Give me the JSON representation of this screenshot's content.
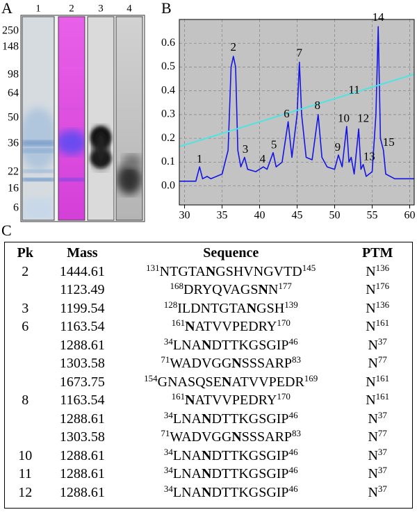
{
  "panel_labels": [
    "A",
    "B",
    "C"
  ],
  "gel": {
    "lanes": [
      "1",
      "2",
      "3",
      "4"
    ],
    "markers": [
      250,
      148,
      98,
      64,
      50,
      36,
      22,
      16,
      6
    ]
  },
  "chart_data": {
    "type": "line",
    "xlim": [
      29.3,
      60.6
    ],
    "ylim": [
      -0.08,
      0.7
    ],
    "xticks": [
      30,
      35,
      40,
      45,
      50,
      55,
      60
    ],
    "yticks": [
      {
        "value": 0,
        "label": "0.0"
      },
      0.1,
      0.2,
      0.3,
      0.4,
      0.5,
      0.6
    ],
    "grid": true,
    "series": [
      {
        "color": "#1414e6",
        "x": [
          29.3,
          31.5,
          32,
          32.4,
          33,
          33.5,
          35,
          35.8,
          36.2,
          36.5,
          36.8,
          37.1,
          37.5,
          38,
          38.4,
          39.5,
          40.5,
          41,
          41.8,
          42.2,
          43,
          43.8,
          44.3,
          45,
          45.3,
          45.6,
          46.2,
          47,
          47.8,
          48.3,
          49,
          50,
          50.5,
          51,
          51.6,
          51.9,
          52.2,
          52.6,
          53.2,
          53.5,
          53.8,
          54.2,
          55,
          55.5,
          55.8,
          56.1,
          56.5,
          56.8,
          58,
          60.6
        ],
        "values": [
          0.02,
          0.02,
          0.08,
          0.03,
          0.04,
          0.03,
          0.05,
          0.15,
          0.5,
          0.545,
          0.5,
          0.15,
          0.08,
          0.12,
          0.07,
          0.06,
          0.08,
          0.07,
          0.14,
          0.08,
          0.1,
          0.27,
          0.12,
          0.3,
          0.52,
          0.3,
          0.12,
          0.11,
          0.3,
          0.12,
          0.08,
          0.07,
          0.13,
          0.08,
          0.25,
          0.1,
          0.12,
          0.05,
          0.24,
          0.07,
          0.09,
          0.04,
          0.06,
          0.3,
          0.67,
          0.2,
          0.15,
          0.05,
          0.03,
          0.03
        ]
      },
      {
        "color": "#4fe3e3",
        "x": [
          29.3,
          60.6
        ],
        "values": [
          0.165,
          0.47
        ]
      }
    ],
    "annotations": [
      {
        "text": "1",
        "x": 32,
        "y": 0.11
      },
      {
        "text": "2",
        "x": 36.5,
        "y": 0.58
      },
      {
        "text": "3",
        "x": 38.1,
        "y": 0.15
      },
      {
        "text": "4",
        "x": 40.4,
        "y": 0.11
      },
      {
        "text": "5",
        "x": 41.9,
        "y": 0.17
      },
      {
        "text": "6",
        "x": 43.6,
        "y": 0.3
      },
      {
        "text": "7",
        "x": 45.3,
        "y": 0.555
      },
      {
        "text": "8",
        "x": 47.7,
        "y": 0.335
      },
      {
        "text": "9",
        "x": 50.4,
        "y": 0.16
      },
      {
        "text": "10",
        "x": 51.2,
        "y": 0.28
      },
      {
        "text": "11",
        "x": 52.6,
        "y": 0.4
      },
      {
        "text": "12",
        "x": 53.8,
        "y": 0.28
      },
      {
        "text": "13",
        "x": 54.6,
        "y": 0.12
      },
      {
        "text": "14",
        "x": 55.8,
        "y": 0.705
      },
      {
        "text": "15",
        "x": 57.2,
        "y": 0.18
      }
    ]
  },
  "table": {
    "columns": [
      "Pk",
      "Mass",
      "Sequence",
      "PTM"
    ],
    "rows": [
      {
        "pk": 2,
        "mass": 1444.61,
        "start": 131,
        "sequence": [
          {
            "text": "NTGTA"
          },
          {
            "text": "N",
            "bold": true
          },
          {
            "text": "GSHVNGVTD"
          }
        ],
        "end": 145,
        "ptm": {
          "residue": "N",
          "site": 136
        }
      },
      {
        "pk": null,
        "mass": 1123.49,
        "start": 168,
        "sequence": [
          {
            "text": "DRYQVAGS"
          },
          {
            "text": "N",
            "bold": true
          },
          {
            "text": "N"
          }
        ],
        "end": 177,
        "ptm": {
          "residue": "N",
          "site": 176
        }
      },
      {
        "pk": 3,
        "mass": 1199.54,
        "start": 128,
        "sequence": [
          {
            "text": "ILDNTGTA"
          },
          {
            "text": "N",
            "bold": true
          },
          {
            "text": "GSH"
          }
        ],
        "end": 139,
        "ptm": {
          "residue": "N",
          "site": 136
        }
      },
      {
        "pk": 6,
        "mass": 1163.54,
        "start": 161,
        "sequence": [
          {
            "text": "N",
            "bold": true
          },
          {
            "text": "ATVVPEDRY"
          }
        ],
        "end": 170,
        "ptm": {
          "residue": "N",
          "site": 161
        }
      },
      {
        "pk": null,
        "mass": 1288.61,
        "start": 34,
        "sequence": [
          {
            "text": "LNA"
          },
          {
            "text": "N",
            "bold": true
          },
          {
            "text": "DTTKGSGIP"
          }
        ],
        "end": 46,
        "ptm": {
          "residue": "N",
          "site": 37
        }
      },
      {
        "pk": null,
        "mass": 1303.58,
        "start": 71,
        "sequence": [
          {
            "text": "WADVGG"
          },
          {
            "text": "N",
            "bold": true
          },
          {
            "text": "SSSARP"
          }
        ],
        "end": 83,
        "ptm": {
          "residue": "N",
          "site": 77
        }
      },
      {
        "pk": null,
        "mass": 1673.75,
        "start": 154,
        "sequence": [
          {
            "text": "GNASQSE"
          },
          {
            "text": "N",
            "bold": true
          },
          {
            "text": "ATVVPEDR"
          }
        ],
        "end": 169,
        "ptm": {
          "residue": "N",
          "site": 161
        }
      },
      {
        "pk": 8,
        "mass": 1163.54,
        "start": 161,
        "sequence": [
          {
            "text": "N",
            "bold": true
          },
          {
            "text": "ATVVPEDRY"
          }
        ],
        "end": 170,
        "ptm": {
          "residue": "N",
          "site": 161
        }
      },
      {
        "pk": null,
        "mass": 1288.61,
        "start": 34,
        "sequence": [
          {
            "text": "LNA"
          },
          {
            "text": "N",
            "bold": true
          },
          {
            "text": "DTTKGSGIP"
          }
        ],
        "end": 46,
        "ptm": {
          "residue": "N",
          "site": 37
        }
      },
      {
        "pk": null,
        "mass": 1303.58,
        "start": 71,
        "sequence": [
          {
            "text": "WADVGG"
          },
          {
            "text": "N",
            "bold": true
          },
          {
            "text": "SSSARP"
          }
        ],
        "end": 83,
        "ptm": {
          "residue": "N",
          "site": 77
        }
      },
      {
        "pk": 10,
        "mass": 1288.61,
        "start": 34,
        "sequence": [
          {
            "text": "LNA"
          },
          {
            "text": "N",
            "bold": true
          },
          {
            "text": "DTTKGSGIP"
          }
        ],
        "end": 46,
        "ptm": {
          "residue": "N",
          "site": 37
        }
      },
      {
        "pk": 11,
        "mass": 1288.61,
        "start": 34,
        "sequence": [
          {
            "text": "LNA"
          },
          {
            "text": "N",
            "bold": true
          },
          {
            "text": "DTTKGSGIP"
          }
        ],
        "end": 46,
        "ptm": {
          "residue": "N",
          "site": 37
        }
      },
      {
        "pk": 12,
        "mass": 1288.61,
        "start": 34,
        "sequence": [
          {
            "text": "LNA"
          },
          {
            "text": "N",
            "bold": true
          },
          {
            "text": "DTTKGSGIP"
          }
        ],
        "end": 46,
        "ptm": {
          "residue": "N",
          "site": 37
        }
      }
    ]
  }
}
